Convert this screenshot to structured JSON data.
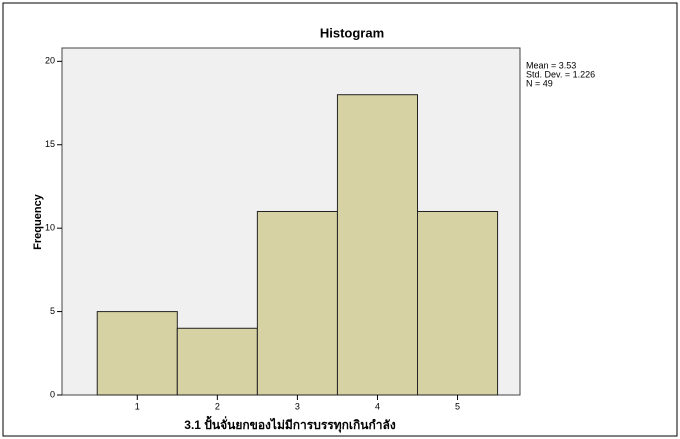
{
  "chart_data": {
    "type": "histogram",
    "title": "Histogram",
    "bins": [
      0.5,
      1.5,
      2.5,
      3.5,
      4.5,
      5.5
    ],
    "counts": [
      5,
      4,
      11,
      18,
      11
    ],
    "color": "#d6d2a4",
    "xlim": [
      0.06,
      5.78
    ],
    "xticks": [
      1,
      2,
      3,
      4,
      5
    ],
    "ylim": [
      0,
      20.8
    ],
    "yticks": [
      0,
      5,
      10,
      15,
      20
    ],
    "xlabel": "3.1 ปั้นจั่นยกของไม่มีการบรรทุกเกินกำลัง",
    "ylabel": "Frequency",
    "annotations": [
      "Mean = 3.53",
      "Std. Dev. = 1.226",
      "N = 49"
    ]
  }
}
